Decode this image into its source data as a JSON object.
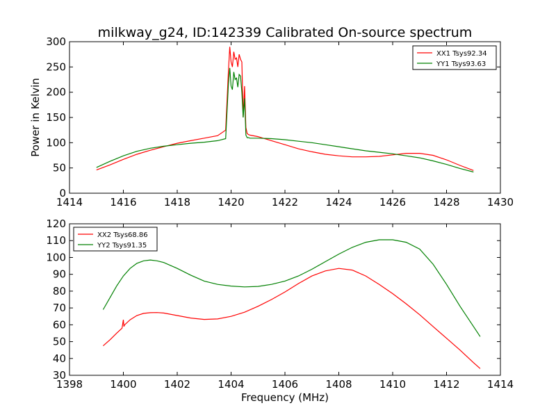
{
  "chart_data": [
    {
      "type": "line",
      "title": "milkway_g24, ID:142339 Calibrated On-source spectrum",
      "xlabel": "",
      "ylabel": "Power in Kelvin",
      "xlim": [
        1414,
        1430
      ],
      "ylim": [
        0,
        300
      ],
      "xticks": [
        "1414",
        "1416",
        "1418",
        "1420",
        "1422",
        "1424",
        "1426",
        "1428",
        "1430"
      ],
      "yticks": [
        "0",
        "50",
        "100",
        "150",
        "200",
        "250",
        "300"
      ],
      "legend_position": "top-right",
      "series": [
        {
          "name": "XX1 Tsys92.34",
          "color": "#ff0000",
          "x": [
            1415.0,
            1415.5,
            1416.0,
            1416.5,
            1417.0,
            1417.5,
            1418.0,
            1418.5,
            1419.0,
            1419.5,
            1419.8,
            1419.9,
            1419.95,
            1420.0,
            1420.05,
            1420.1,
            1420.15,
            1420.2,
            1420.25,
            1420.3,
            1420.35,
            1420.4,
            1420.45,
            1420.5,
            1420.55,
            1420.6,
            1420.65,
            1420.7,
            1421.0,
            1421.5,
            1422.0,
            1422.5,
            1423.0,
            1423.5,
            1424.0,
            1424.5,
            1425.0,
            1425.5,
            1426.0,
            1426.5,
            1427.0,
            1427.5,
            1428.0,
            1428.5,
            1429.0
          ],
          "y": [
            46,
            56,
            67,
            77,
            85,
            92,
            99,
            104,
            109,
            114,
            125,
            240,
            290,
            260,
            250,
            280,
            265,
            268,
            250,
            275,
            265,
            260,
            150,
            212,
            130,
            118,
            116,
            115,
            112,
            104,
            96,
            88,
            82,
            77,
            74,
            72,
            72,
            73,
            76,
            79,
            79,
            75,
            66,
            55,
            45
          ]
        },
        {
          "name": "YY1 Tsys93.63",
          "color": "#008000",
          "x": [
            1415.0,
            1415.5,
            1416.0,
            1416.5,
            1417.0,
            1417.5,
            1418.0,
            1418.5,
            1419.0,
            1419.5,
            1419.8,
            1419.9,
            1419.95,
            1420.0,
            1420.05,
            1420.1,
            1420.15,
            1420.2,
            1420.25,
            1420.3,
            1420.35,
            1420.4,
            1420.45,
            1420.5,
            1420.55,
            1420.6,
            1420.65,
            1420.7,
            1421.0,
            1421.5,
            1422.0,
            1422.5,
            1423.0,
            1423.5,
            1424.0,
            1424.5,
            1425.0,
            1425.5,
            1426.0,
            1426.5,
            1427.0,
            1427.5,
            1428.0,
            1428.5,
            1429.0
          ],
          "y": [
            51,
            63,
            74,
            83,
            89,
            93,
            96,
            99,
            101,
            104,
            108,
            215,
            248,
            212,
            205,
            240,
            225,
            228,
            210,
            235,
            232,
            200,
            150,
            188,
            115,
            110,
            110,
            109,
            109,
            108,
            106,
            103,
            100,
            96,
            92,
            88,
            84,
            81,
            78,
            74,
            70,
            64,
            57,
            49,
            42
          ]
        }
      ]
    },
    {
      "type": "line",
      "title": "",
      "xlabel": "Frequency (MHz)",
      "ylabel": "",
      "xlim": [
        1398,
        1414
      ],
      "ylim": [
        30,
        120
      ],
      "xticks": [
        "1398",
        "1400",
        "1402",
        "1404",
        "1406",
        "1408",
        "1410",
        "1412",
        "1414"
      ],
      "yticks": [
        "30",
        "40",
        "50",
        "60",
        "70",
        "80",
        "90",
        "100",
        "110",
        "120"
      ],
      "legend_position": "top-left",
      "series": [
        {
          "name": "XX2 Tsys68.86",
          "color": "#ff0000",
          "x": [
            1399.25,
            1399.5,
            1399.75,
            1399.95,
            1400.0,
            1400.02,
            1400.05,
            1400.25,
            1400.5,
            1400.75,
            1401.0,
            1401.25,
            1401.5,
            1402.0,
            1402.5,
            1403.0,
            1403.5,
            1404.0,
            1404.5,
            1405.0,
            1405.5,
            1406.0,
            1406.5,
            1407.0,
            1407.5,
            1408.0,
            1408.5,
            1409.0,
            1409.5,
            1410.0,
            1410.5,
            1411.0,
            1411.5,
            1412.0,
            1412.5,
            1413.0,
            1413.25
          ],
          "y": [
            47.5,
            51,
            55,
            58,
            63,
            59,
            60,
            63,
            65.5,
            66.8,
            67.2,
            67.3,
            67,
            65.5,
            64,
            63.2,
            63.5,
            65,
            67.5,
            71,
            75,
            79.5,
            84.5,
            89,
            92,
            93.5,
            92.5,
            89,
            84,
            78.5,
            72.5,
            66,
            59,
            52,
            45,
            37.5,
            34
          ]
        },
        {
          "name": "YY2 Tsys91.35",
          "color": "#008000",
          "x": [
            1399.25,
            1399.5,
            1399.75,
            1400.0,
            1400.25,
            1400.5,
            1400.75,
            1401.0,
            1401.25,
            1401.5,
            1402.0,
            1402.5,
            1403.0,
            1403.5,
            1404.0,
            1404.5,
            1405.0,
            1405.5,
            1406.0,
            1406.5,
            1407.0,
            1407.5,
            1408.0,
            1408.5,
            1409.0,
            1409.5,
            1410.0,
            1410.5,
            1411.0,
            1411.5,
            1412.0,
            1412.5,
            1413.0,
            1413.25
          ],
          "y": [
            69,
            76,
            83,
            89,
            93.5,
            96.5,
            98,
            98.5,
            98,
            97,
            93.5,
            89.5,
            86,
            84,
            83,
            82.5,
            82.8,
            84,
            86,
            89,
            93,
            97.5,
            102,
            106,
            109,
            110.5,
            110.5,
            109,
            105,
            96,
            84,
            71,
            59,
            53
          ]
        }
      ]
    }
  ]
}
